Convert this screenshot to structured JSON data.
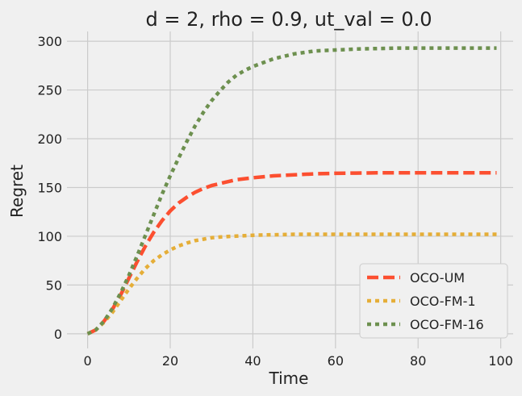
{
  "chart_data": {
    "type": "line",
    "title": "d = 2, rho = 0.9, ut_val = 0.0",
    "xlabel": "Time",
    "ylabel": "Regret",
    "xlim": [
      -5,
      103
    ],
    "ylim": [
      -15,
      310
    ],
    "xticks": [
      0,
      20,
      40,
      60,
      80,
      100
    ],
    "yticks": [
      0,
      50,
      100,
      150,
      200,
      250,
      300
    ],
    "grid": true,
    "legend_position": "lower-right",
    "x": [
      0,
      2,
      4,
      6,
      8,
      10,
      12,
      14,
      16,
      18,
      20,
      22,
      24,
      26,
      28,
      30,
      32,
      34,
      36,
      38,
      40,
      45,
      50,
      55,
      60,
      65,
      70,
      75,
      80,
      85,
      90,
      95,
      99
    ],
    "series": [
      {
        "name": "OCO-UM",
        "color": "#fc4f30",
        "dash": "dashed",
        "values": [
          0,
          4,
          13,
          25,
          40,
          57,
          74,
          90,
          104,
          116,
          126,
          134,
          140,
          145,
          149,
          152,
          154,
          156,
          158,
          159,
          160,
          162,
          163,
          164,
          164.5,
          164.8,
          165,
          165,
          165,
          165,
          165,
          165,
          165
        ]
      },
      {
        "name": "OCO-FM-1",
        "color": "#e5ae38",
        "dash": "dotted",
        "values": [
          0,
          4,
          12,
          22,
          34,
          46,
          57,
          67,
          75,
          81,
          86,
          90,
          93,
          95.5,
          97,
          98.5,
          99.2,
          99.8,
          100.2,
          100.6,
          101,
          101.5,
          102,
          102,
          102,
          102,
          102,
          102,
          102,
          102,
          102,
          102,
          102
        ]
      },
      {
        "name": "OCO-FM-16",
        "color": "#6d904f",
        "dash": "dotted",
        "values": [
          0,
          4,
          13,
          26,
          42,
          60,
          80,
          101,
          122,
          143,
          162,
          180,
          197,
          213,
          227,
          239,
          249,
          258,
          265,
          270,
          274,
          282,
          287,
          290,
          291,
          292,
          292.5,
          293,
          293,
          293,
          293,
          293,
          293
        ]
      }
    ]
  }
}
